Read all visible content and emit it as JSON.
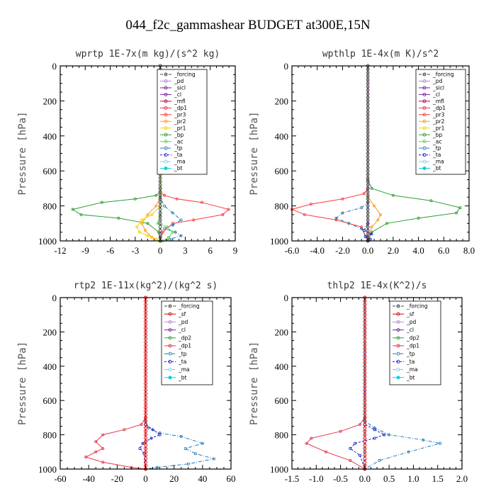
{
  "figure_title": "044_f2c_gammashear  BUDGET at300E,15N",
  "colors": {
    "_forcing": "#444444",
    "_pd": "#b48ad8",
    "_sicl": "#7a1fa0",
    "_cl": "#7a1fa0",
    "_mfl": "#c4004a",
    "_dp1": "#e8334a",
    "_pr3": "#ff3b3b",
    "_pr2": "#ff9a1a",
    "_pr1": "#f5d300",
    "_bp": "#2ca02c",
    "_ac": "#5bd35b",
    "_tp": "#1f77b4",
    "_ta": "#1a1acc",
    "_ma": "#7ec8e3",
    "_bt": "#00d0e0",
    "_sf": "#e00000",
    "_dp2": "#2ca02c"
  },
  "chart_data": [
    {
      "type": "line",
      "title": "wprtp  1E-7x(m kg)/(s^2 kg)",
      "xlabel": "",
      "ylabel": "Pressure [hPa]",
      "xlim": [
        -12,
        9
      ],
      "ylim": [
        1000,
        0
      ],
      "xticks": [
        -12,
        -9,
        -6,
        -3,
        0,
        3,
        6,
        9
      ],
      "xtick_labels": [
        "-12",
        "-9",
        "-6",
        "-3",
        "0",
        "3",
        "6",
        "9"
      ],
      "yticks": [
        0,
        200,
        400,
        600,
        800,
        1000
      ],
      "ytick_labels": [
        "0",
        "200",
        "400",
        "600",
        "800",
        "1000"
      ],
      "legend": [
        "_forcing",
        "_pd",
        "_sicl",
        "_cl",
        "_mfl",
        "_dp1",
        "_pr3",
        "_pr2",
        "_pr1",
        "_bp",
        "_ac",
        "_tp",
        "_ta",
        "_ma",
        "_bt"
      ],
      "series": [
        {
          "name": "_bp",
          "x": [
            0,
            0,
            0,
            -0.5,
            -3,
            -7,
            -10.5,
            -9.5,
            -5,
            -1.5,
            -0.2,
            0
          ],
          "y": [
            0,
            700,
            720,
            740,
            760,
            780,
            820,
            850,
            870,
            900,
            950,
            1000
          ]
        },
        {
          "name": "_pr3",
          "x": [
            0,
            0,
            0,
            0.5,
            2,
            5,
            8.2,
            7.5,
            4,
            1.5,
            0.3,
            0
          ],
          "y": [
            0,
            700,
            720,
            740,
            760,
            780,
            820,
            850,
            880,
            900,
            950,
            1000
          ]
        },
        {
          "name": "_pr2",
          "x": [
            0,
            0,
            -0.5,
            -1.5,
            -2.2,
            -1.8,
            -1,
            0
          ],
          "y": [
            0,
            750,
            800,
            850,
            900,
            940,
            980,
            1000
          ]
        },
        {
          "name": "_pr1",
          "x": [
            0,
            0,
            -1,
            -2.2,
            -2.8,
            -2.5,
            -1.5,
            -0.5,
            0
          ],
          "y": [
            0,
            800,
            850,
            880,
            920,
            950,
            970,
            990,
            1000
          ]
        },
        {
          "name": "_tp",
          "x": [
            0,
            0,
            0.5,
            1.5,
            2.5,
            1.5,
            0.5,
            1.8,
            2.5,
            1.2,
            0.3
          ],
          "y": [
            0,
            750,
            800,
            840,
            880,
            910,
            930,
            950,
            970,
            990,
            1000
          ]
        },
        {
          "name": "_ac",
          "x": [
            0,
            0,
            -0.3,
            0.8,
            1.5,
            1,
            0.3
          ],
          "y": [
            0,
            850,
            900,
            920,
            950,
            980,
            1000
          ]
        },
        {
          "name": "_forcing",
          "x": [
            0,
            0
          ],
          "y": [
            0,
            1000
          ]
        }
      ]
    },
    {
      "type": "line",
      "title": "wpthlp  1E-4x(m K)/s^2",
      "xlabel": "",
      "ylabel": "Pressure [hPa]",
      "xlim": [
        -6,
        8
      ],
      "ylim": [
        1000,
        0
      ],
      "xticks": [
        -6,
        -4,
        -2,
        0,
        2,
        4,
        6,
        8
      ],
      "xtick_labels": [
        "-6.0",
        "-4.0",
        "-2.0",
        "0.0",
        "2.0",
        "4.0",
        "6.0",
        "8.0"
      ],
      "yticks": [
        0,
        200,
        400,
        600,
        800,
        1000
      ],
      "ytick_labels": [
        "0",
        "200",
        "400",
        "600",
        "800",
        "1000"
      ],
      "legend": [
        "_forcing",
        "_pd",
        "_sicl",
        "_cl",
        "_mfl",
        "_dp1",
        "_pr3",
        "_pr2",
        "_pr1",
        "_bp",
        "_ac",
        "_tp",
        "_ta",
        "_ma",
        "_bt"
      ],
      "series": [
        {
          "name": "_bp",
          "x": [
            0,
            0,
            0.3,
            2,
            5,
            7.3,
            7,
            4,
            1.5,
            0.3,
            0
          ],
          "y": [
            0,
            650,
            700,
            740,
            770,
            810,
            840,
            870,
            900,
            950,
            1000
          ]
        },
        {
          "name": "_pr3",
          "x": [
            0,
            0,
            -0.3,
            -2,
            -4.5,
            -6,
            -5,
            -2.5,
            -0.5,
            0
          ],
          "y": [
            0,
            700,
            730,
            760,
            790,
            820,
            850,
            880,
            920,
            1000
          ]
        },
        {
          "name": "_pr2",
          "x": [
            0,
            0,
            0.5,
            1,
            0.8,
            0.3,
            0
          ],
          "y": [
            0,
            750,
            800,
            850,
            880,
            920,
            1000
          ]
        },
        {
          "name": "_tp",
          "x": [
            0,
            0,
            -0.5,
            -2,
            -2.5,
            -1.5,
            -0.5,
            0
          ],
          "y": [
            0,
            780,
            810,
            840,
            870,
            900,
            930,
            1000
          ]
        },
        {
          "name": "_ta",
          "x": [
            0,
            0,
            -0.3,
            0.3,
            -0.2,
            0.2,
            0
          ],
          "y": [
            0,
            900,
            940,
            960,
            975,
            990,
            1000
          ]
        },
        {
          "name": "_sicl",
          "x": [
            0,
            0
          ],
          "y": [
            0,
            1000
          ]
        },
        {
          "name": "_forcing",
          "x": [
            0,
            0
          ],
          "y": [
            0,
            1000
          ]
        }
      ]
    },
    {
      "type": "line",
      "title": "rtp2  1E-11x(kg^2)/(kg^2 s)",
      "xlabel": "",
      "ylabel": "Pressure [hPa]",
      "xlim": [
        -60,
        60
      ],
      "ylim": [
        1000,
        0
      ],
      "xticks": [
        -60,
        -40,
        -20,
        0,
        20,
        40,
        60
      ],
      "xtick_labels": [
        "-60",
        "-40",
        "-20",
        "0",
        "20",
        "40",
        "60"
      ],
      "yticks": [
        0,
        200,
        400,
        600,
        800,
        1000
      ],
      "ytick_labels": [
        "0",
        "200",
        "400",
        "600",
        "800",
        "1000"
      ],
      "legend": [
        "_forcing",
        "_sf",
        "_pd",
        "_cl",
        "_dp2",
        "_dp1",
        "_tp",
        "_ta",
        "_ma",
        "_bt"
      ],
      "series": [
        {
          "name": "_dp1",
          "x": [
            0,
            0,
            -3,
            -15,
            -30,
            -35,
            -30,
            -35,
            -42,
            -30,
            -10,
            0
          ],
          "y": [
            0,
            700,
            740,
            770,
            800,
            840,
            880,
            900,
            930,
            960,
            990,
            1000
          ]
        },
        {
          "name": "_tp",
          "x": [
            0,
            0,
            2,
            10,
            25,
            40,
            28,
            35,
            48,
            30,
            8,
            0
          ],
          "y": [
            0,
            720,
            760,
            790,
            810,
            850,
            880,
            910,
            940,
            970,
            990,
            1000
          ]
        },
        {
          "name": "_ta",
          "x": [
            0,
            0,
            5,
            10,
            4,
            -2,
            -4,
            -1,
            0
          ],
          "y": [
            0,
            740,
            770,
            800,
            820,
            850,
            880,
            910,
            1000
          ]
        },
        {
          "name": "_forcing",
          "x": [
            0,
            0
          ],
          "y": [
            0,
            1000
          ]
        }
      ]
    },
    {
      "type": "line",
      "title": "thlp2  1E-4x(K^2)/s",
      "xlabel": "",
      "ylabel": "Pressure [hPa]",
      "xlim": [
        -1.5,
        2.0
      ],
      "ylim": [
        1000,
        0
      ],
      "xticks": [
        -1.5,
        -1.0,
        -0.5,
        0.0,
        0.5,
        1.0,
        1.5,
        2.0
      ],
      "xtick_labels": [
        "-1.5",
        "-1.0",
        "-0.5",
        "0.0",
        "0.5",
        "1.0",
        "1.5",
        "2.0"
      ],
      "yticks": [
        0,
        200,
        400,
        600,
        800,
        1000
      ],
      "ytick_labels": [
        "0",
        "200",
        "400",
        "600",
        "800",
        "1000"
      ],
      "legend": [
        "_forcing",
        "_sf",
        "_pd",
        "_cl",
        "_dp2",
        "_dp1",
        "_tp",
        "_ta",
        "_ma",
        "_bt"
      ],
      "series": [
        {
          "name": "_dp1",
          "x": [
            0,
            0,
            -0.1,
            -0.5,
            -1.1,
            -1.2,
            -0.8,
            -0.3,
            0
          ],
          "y": [
            0,
            700,
            740,
            780,
            820,
            850,
            900,
            950,
            1000
          ]
        },
        {
          "name": "_tp",
          "x": [
            0,
            0,
            0.2,
            0.5,
            1.2,
            1.55,
            0.9,
            0.3,
            0
          ],
          "y": [
            0,
            720,
            760,
            800,
            830,
            850,
            900,
            950,
            1000
          ]
        },
        {
          "name": "_ta",
          "x": [
            0,
            0,
            0.2,
            0.4,
            0.2,
            -0.2,
            -0.3,
            -0.1,
            0
          ],
          "y": [
            0,
            740,
            770,
            800,
            820,
            850,
            880,
            920,
            1000
          ]
        },
        {
          "name": "_forcing",
          "x": [
            0,
            0
          ],
          "y": [
            0,
            1000
          ]
        }
      ]
    }
  ]
}
